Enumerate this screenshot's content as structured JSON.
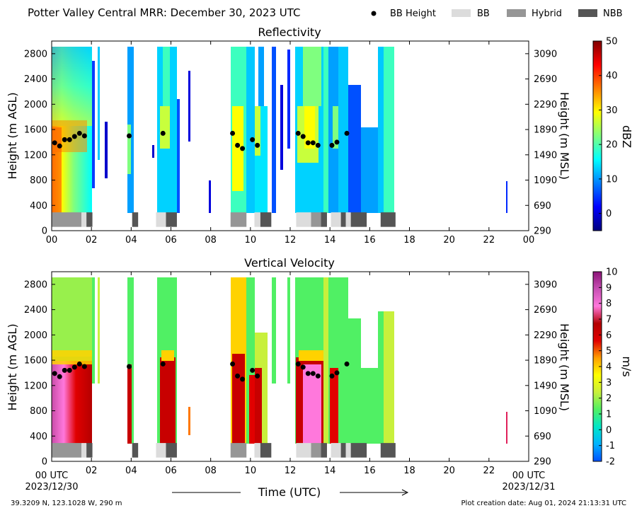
{
  "header": {
    "title": "Potter Valley Central MRR:  December 30, 2023 UTC",
    "legend": [
      {
        "label": "BB Height",
        "kind": "dot",
        "color": "#000000"
      },
      {
        "label": "BB",
        "kind": "box",
        "color": "#dcdcdc"
      },
      {
        "label": "Hybrid",
        "kind": "box",
        "color": "#969696"
      },
      {
        "label": "NBB",
        "kind": "box",
        "color": "#555555"
      }
    ]
  },
  "footer": {
    "location": "39.3209 N, 123.1028 W, 290 m",
    "created": "Plot creation date: Aug 01, 2024 21:13:31 UTC",
    "time_label": "Time (UTC)",
    "start_tick": "00 UTC",
    "start_date": "2023/12/30",
    "end_tick": "00 UTC",
    "end_date": "2023/12/31"
  },
  "chart_data": [
    {
      "type": "heatmap",
      "title": "Reflectivity",
      "ylabel": "Height (m AGL)",
      "y2label": "Height (m MSL)",
      "colorbar_label": "dBZ",
      "xlim": [
        0,
        24
      ],
      "ylim": [
        0,
        3000
      ],
      "x_ticks": [
        "00",
        "02",
        "04",
        "06",
        "08",
        "10",
        "12",
        "14",
        "16",
        "18",
        "20",
        "22",
        "00"
      ],
      "y_ticks": [
        0,
        400,
        800,
        1200,
        1600,
        2000,
        2400,
        2800
      ],
      "y2_ticks": [
        290,
        690,
        1090,
        1490,
        1890,
        2290,
        2690,
        3090
      ],
      "cbar_range": [
        -5,
        50
      ],
      "cbar_ticks": [
        0,
        10,
        20,
        30,
        40,
        50
      ],
      "cbar_colors": [
        "#00007f",
        "#0000ff",
        "#007fff",
        "#00ffff",
        "#7fff7f",
        "#ffff00",
        "#ff7f00",
        "#ff0000",
        "#7f0000"
      ]
    },
    {
      "type": "heatmap",
      "title": "Vertical Velocity",
      "ylabel": "Height (m AGL)",
      "y2label": "Height (m MSL)",
      "colorbar_label": "m/s",
      "xlim": [
        0,
        24
      ],
      "ylim": [
        0,
        3000
      ],
      "x_ticks": [
        "",
        "02",
        "04",
        "06",
        "08",
        "10",
        "12",
        "14",
        "16",
        "18",
        "20",
        "22",
        ""
      ],
      "y_ticks": [
        0,
        400,
        800,
        1200,
        1600,
        2000,
        2400,
        2800
      ],
      "y2_ticks": [
        290,
        690,
        1090,
        1490,
        1890,
        2290,
        2690,
        3090
      ],
      "cbar_range": [
        -2,
        10
      ],
      "cbar_ticks": [
        -2,
        -1,
        0,
        1,
        2,
        3,
        4,
        5,
        6,
        7,
        8,
        9,
        10
      ],
      "cbar_colors": [
        "#0050ff",
        "#00b4ff",
        "#00e6c8",
        "#50f064",
        "#c8f03c",
        "#ffff00",
        "#ffa000",
        "#e10000",
        "#b40000",
        "#ff78dc",
        "#c850b4",
        "#8c1478"
      ]
    }
  ],
  "bb_height_points": [
    [
      0.15,
      1390
    ],
    [
      0.4,
      1340
    ],
    [
      0.65,
      1440
    ],
    [
      0.9,
      1440
    ],
    [
      1.15,
      1490
    ],
    [
      1.4,
      1540
    ],
    [
      1.65,
      1500
    ],
    [
      3.9,
      1500
    ],
    [
      5.6,
      1540
    ],
    [
      9.1,
      1540
    ],
    [
      9.35,
      1350
    ],
    [
      9.6,
      1300
    ],
    [
      10.1,
      1440
    ],
    [
      10.35,
      1350
    ],
    [
      12.4,
      1540
    ],
    [
      12.65,
      1490
    ],
    [
      12.9,
      1390
    ],
    [
      13.15,
      1390
    ],
    [
      13.4,
      1350
    ],
    [
      14.1,
      1350
    ],
    [
      14.35,
      1400
    ],
    [
      14.85,
      1540
    ]
  ],
  "bb_classification": [
    {
      "start": 0.0,
      "end": 1.5,
      "class": "Hybrid"
    },
    {
      "start": 1.5,
      "end": 1.75,
      "class": "BB"
    },
    {
      "start": 1.75,
      "end": 2.05,
      "class": "NBB"
    },
    {
      "start": 4.05,
      "end": 4.35,
      "class": "NBB"
    },
    {
      "start": 5.25,
      "end": 5.75,
      "class": "BB"
    },
    {
      "start": 5.75,
      "end": 6.3,
      "class": "NBB"
    },
    {
      "start": 9.0,
      "end": 9.8,
      "class": "Hybrid"
    },
    {
      "start": 10.2,
      "end": 10.5,
      "class": "BB"
    },
    {
      "start": 10.5,
      "end": 11.05,
      "class": "NBB"
    },
    {
      "start": 12.3,
      "end": 13.05,
      "class": "BB"
    },
    {
      "start": 13.05,
      "end": 13.55,
      "class": "Hybrid"
    },
    {
      "start": 13.55,
      "end": 13.85,
      "class": "NBB"
    },
    {
      "start": 14.05,
      "end": 14.55,
      "class": "BB"
    },
    {
      "start": 14.55,
      "end": 14.8,
      "class": "NBB"
    },
    {
      "start": 14.8,
      "end": 15.05,
      "class": "BB"
    },
    {
      "start": 15.05,
      "end": 15.85,
      "class": "NBB"
    },
    {
      "start": 16.55,
      "end": 17.3,
      "class": "NBB"
    }
  ]
}
